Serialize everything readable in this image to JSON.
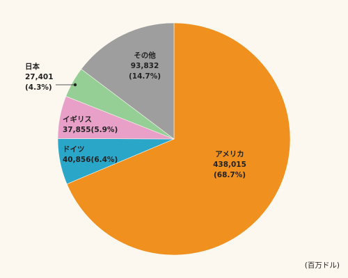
{
  "chart_data": {
    "type": "pie",
    "categories": [
      "アメリカ",
      "ドイツ",
      "イギリス",
      "日本",
      "その他"
    ],
    "values": [
      438015,
      40856,
      37855,
      27401,
      93832
    ],
    "value_labels": [
      "438,015",
      "40,856",
      "37,855",
      "27,401",
      "93,832"
    ],
    "percent_labels": [
      "(68.7%)",
      "(6.4%)",
      "(5.9%)",
      "(4.3%)",
      "(14.7%)"
    ],
    "colors": [
      "#f0901e",
      "#2aa6c9",
      "#e9a0c8",
      "#96cf96",
      "#9e9e9e"
    ],
    "unit_label": "(百万ドル)"
  }
}
